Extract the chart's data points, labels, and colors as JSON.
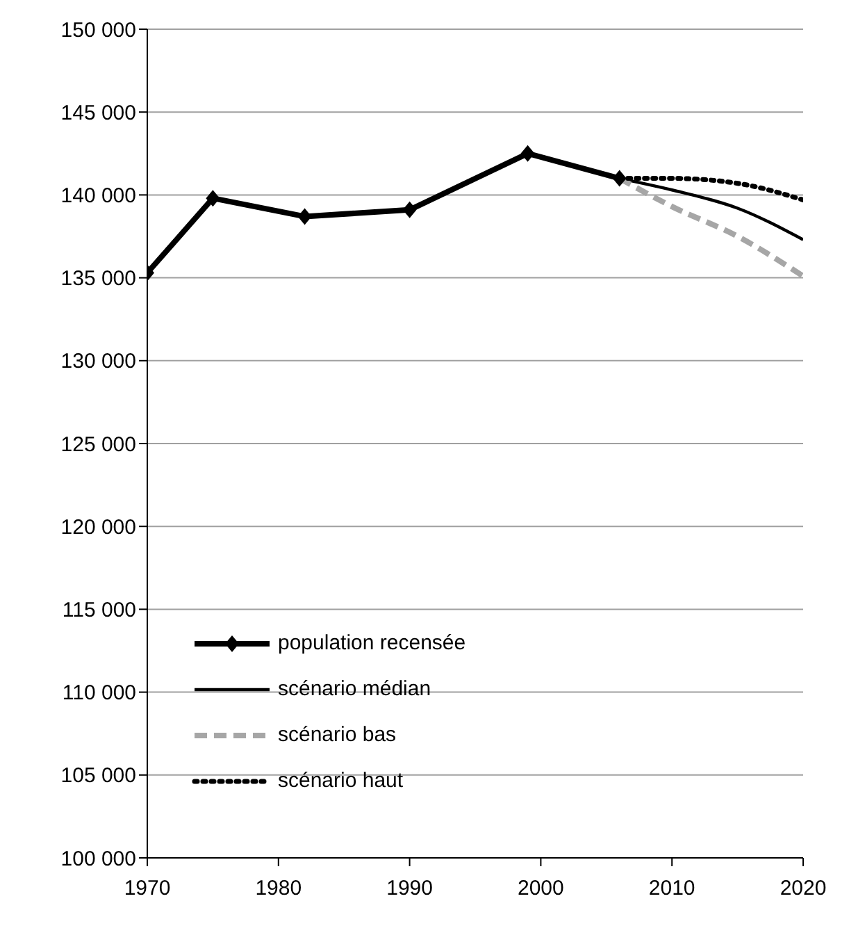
{
  "chart_data": {
    "type": "line",
    "xlim": [
      1970,
      2020
    ],
    "xticks": [
      1970,
      1980,
      1990,
      2000,
      2010,
      2020
    ],
    "ylim": [
      100000,
      150000
    ],
    "yticks": [
      {
        "value": 100000,
        "label": "100 000"
      },
      {
        "value": 105000,
        "label": "105 000"
      },
      {
        "value": 110000,
        "label": "110 000"
      },
      {
        "value": 115000,
        "label": "115 000"
      },
      {
        "value": 120000,
        "label": "120 000"
      },
      {
        "value": 125000,
        "label": "125 000"
      },
      {
        "value": 130000,
        "label": "130 000"
      },
      {
        "value": 135000,
        "label": "135 000"
      },
      {
        "value": 140000,
        "label": "140 000"
      },
      {
        "value": 145000,
        "label": "145 000"
      },
      {
        "value": 150000,
        "label": "150 000"
      }
    ],
    "grid": "y",
    "legend": "bottom left",
    "series": [
      {
        "name": "population recensée",
        "color": "#000000",
        "marker": "diamond",
        "line_style": "solid",
        "x": [
          1970,
          1975,
          1982,
          1990,
          1999,
          2006
        ],
        "values": [
          135300,
          139800,
          138700,
          139100,
          142500,
          141000
        ]
      },
      {
        "name": "scénario médian",
        "color": "#000000",
        "line_style": "solid",
        "x": [
          2006,
          2010,
          2015,
          2020
        ],
        "values": [
          141000,
          140300,
          139200,
          137300
        ]
      },
      {
        "name": "scénario bas",
        "color": "#a6a6a6",
        "line_style": "dashed",
        "x": [
          2006,
          2010,
          2015,
          2020
        ],
        "values": [
          141000,
          139300,
          137500,
          135100
        ]
      },
      {
        "name": "scénario haut",
        "color": "#000000",
        "line_style": "dotted",
        "x": [
          2006,
          2010,
          2015,
          2020
        ],
        "values": [
          141000,
          141000,
          140700,
          139700
        ]
      }
    ]
  }
}
